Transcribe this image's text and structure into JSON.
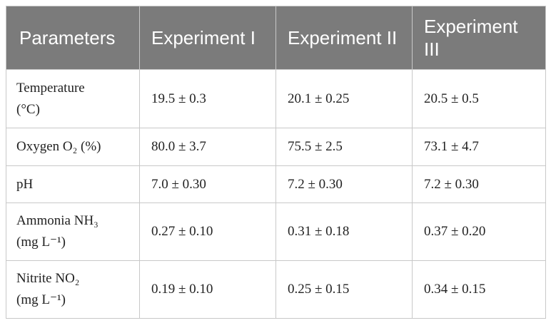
{
  "table": {
    "header": [
      "Parameters",
      "Experiment I",
      "Experiment II",
      "Experiment III"
    ],
    "rows": [
      [
        "Temperature (°C)",
        "19.5 ± 0.3",
        "20.1 ± 0.25",
        "20.5 ± 0.5"
      ],
      [
        "Oxygen O₂ (%)",
        "80.0 ± 3.7",
        "75.5 ± 2.5",
        "73.1 ± 4.7"
      ],
      [
        "pH",
        "7.0 ± 0.30",
        "7.2 ± 0.30",
        "7.2 ± 0.30"
      ],
      [
        "Ammonia NH₃ (mg L⁻¹)",
        "0.27 ± 0.10",
        "0.31 ± 0.18",
        "0.37 ± 0.20"
      ],
      [
        "Nitrite NO₂ (mg L⁻¹)",
        "0.19 ± 0.10",
        "0.25 ± 0.15",
        "0.34 ± 0.15"
      ]
    ]
  }
}
